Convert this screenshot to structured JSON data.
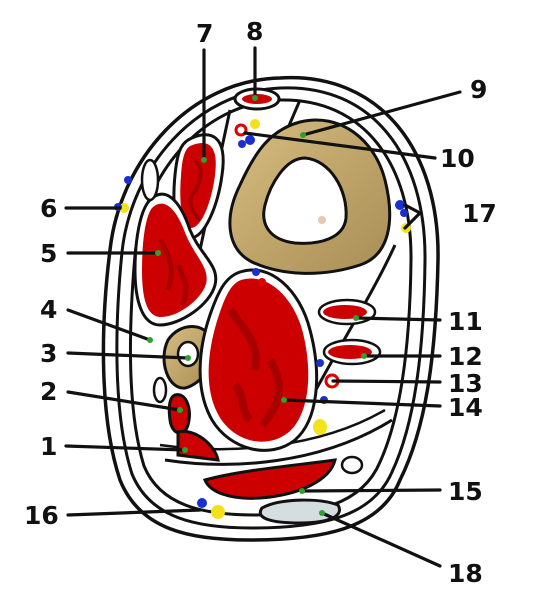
{
  "labels": {
    "l1": "1",
    "l2": "2",
    "l3": "3",
    "l4": "4",
    "l5": "5",
    "l6": "6",
    "l7": "7",
    "l8": "8",
    "l9": "9",
    "l10": "10",
    "l11": "11",
    "l12": "12",
    "l13": "13",
    "l14": "14",
    "l15": "15",
    "l16": "16",
    "l17": "17",
    "l18": "18"
  },
  "colors": {
    "muscle": "#cc0000",
    "muscle_dark": "#8a0000",
    "bone": "#c8ae70",
    "artery": "#e00000",
    "vein": "#1a2fd0",
    "nerve": "#f3e21a",
    "tendon": "#d6dde0",
    "marker": "#2ea02e"
  }
}
